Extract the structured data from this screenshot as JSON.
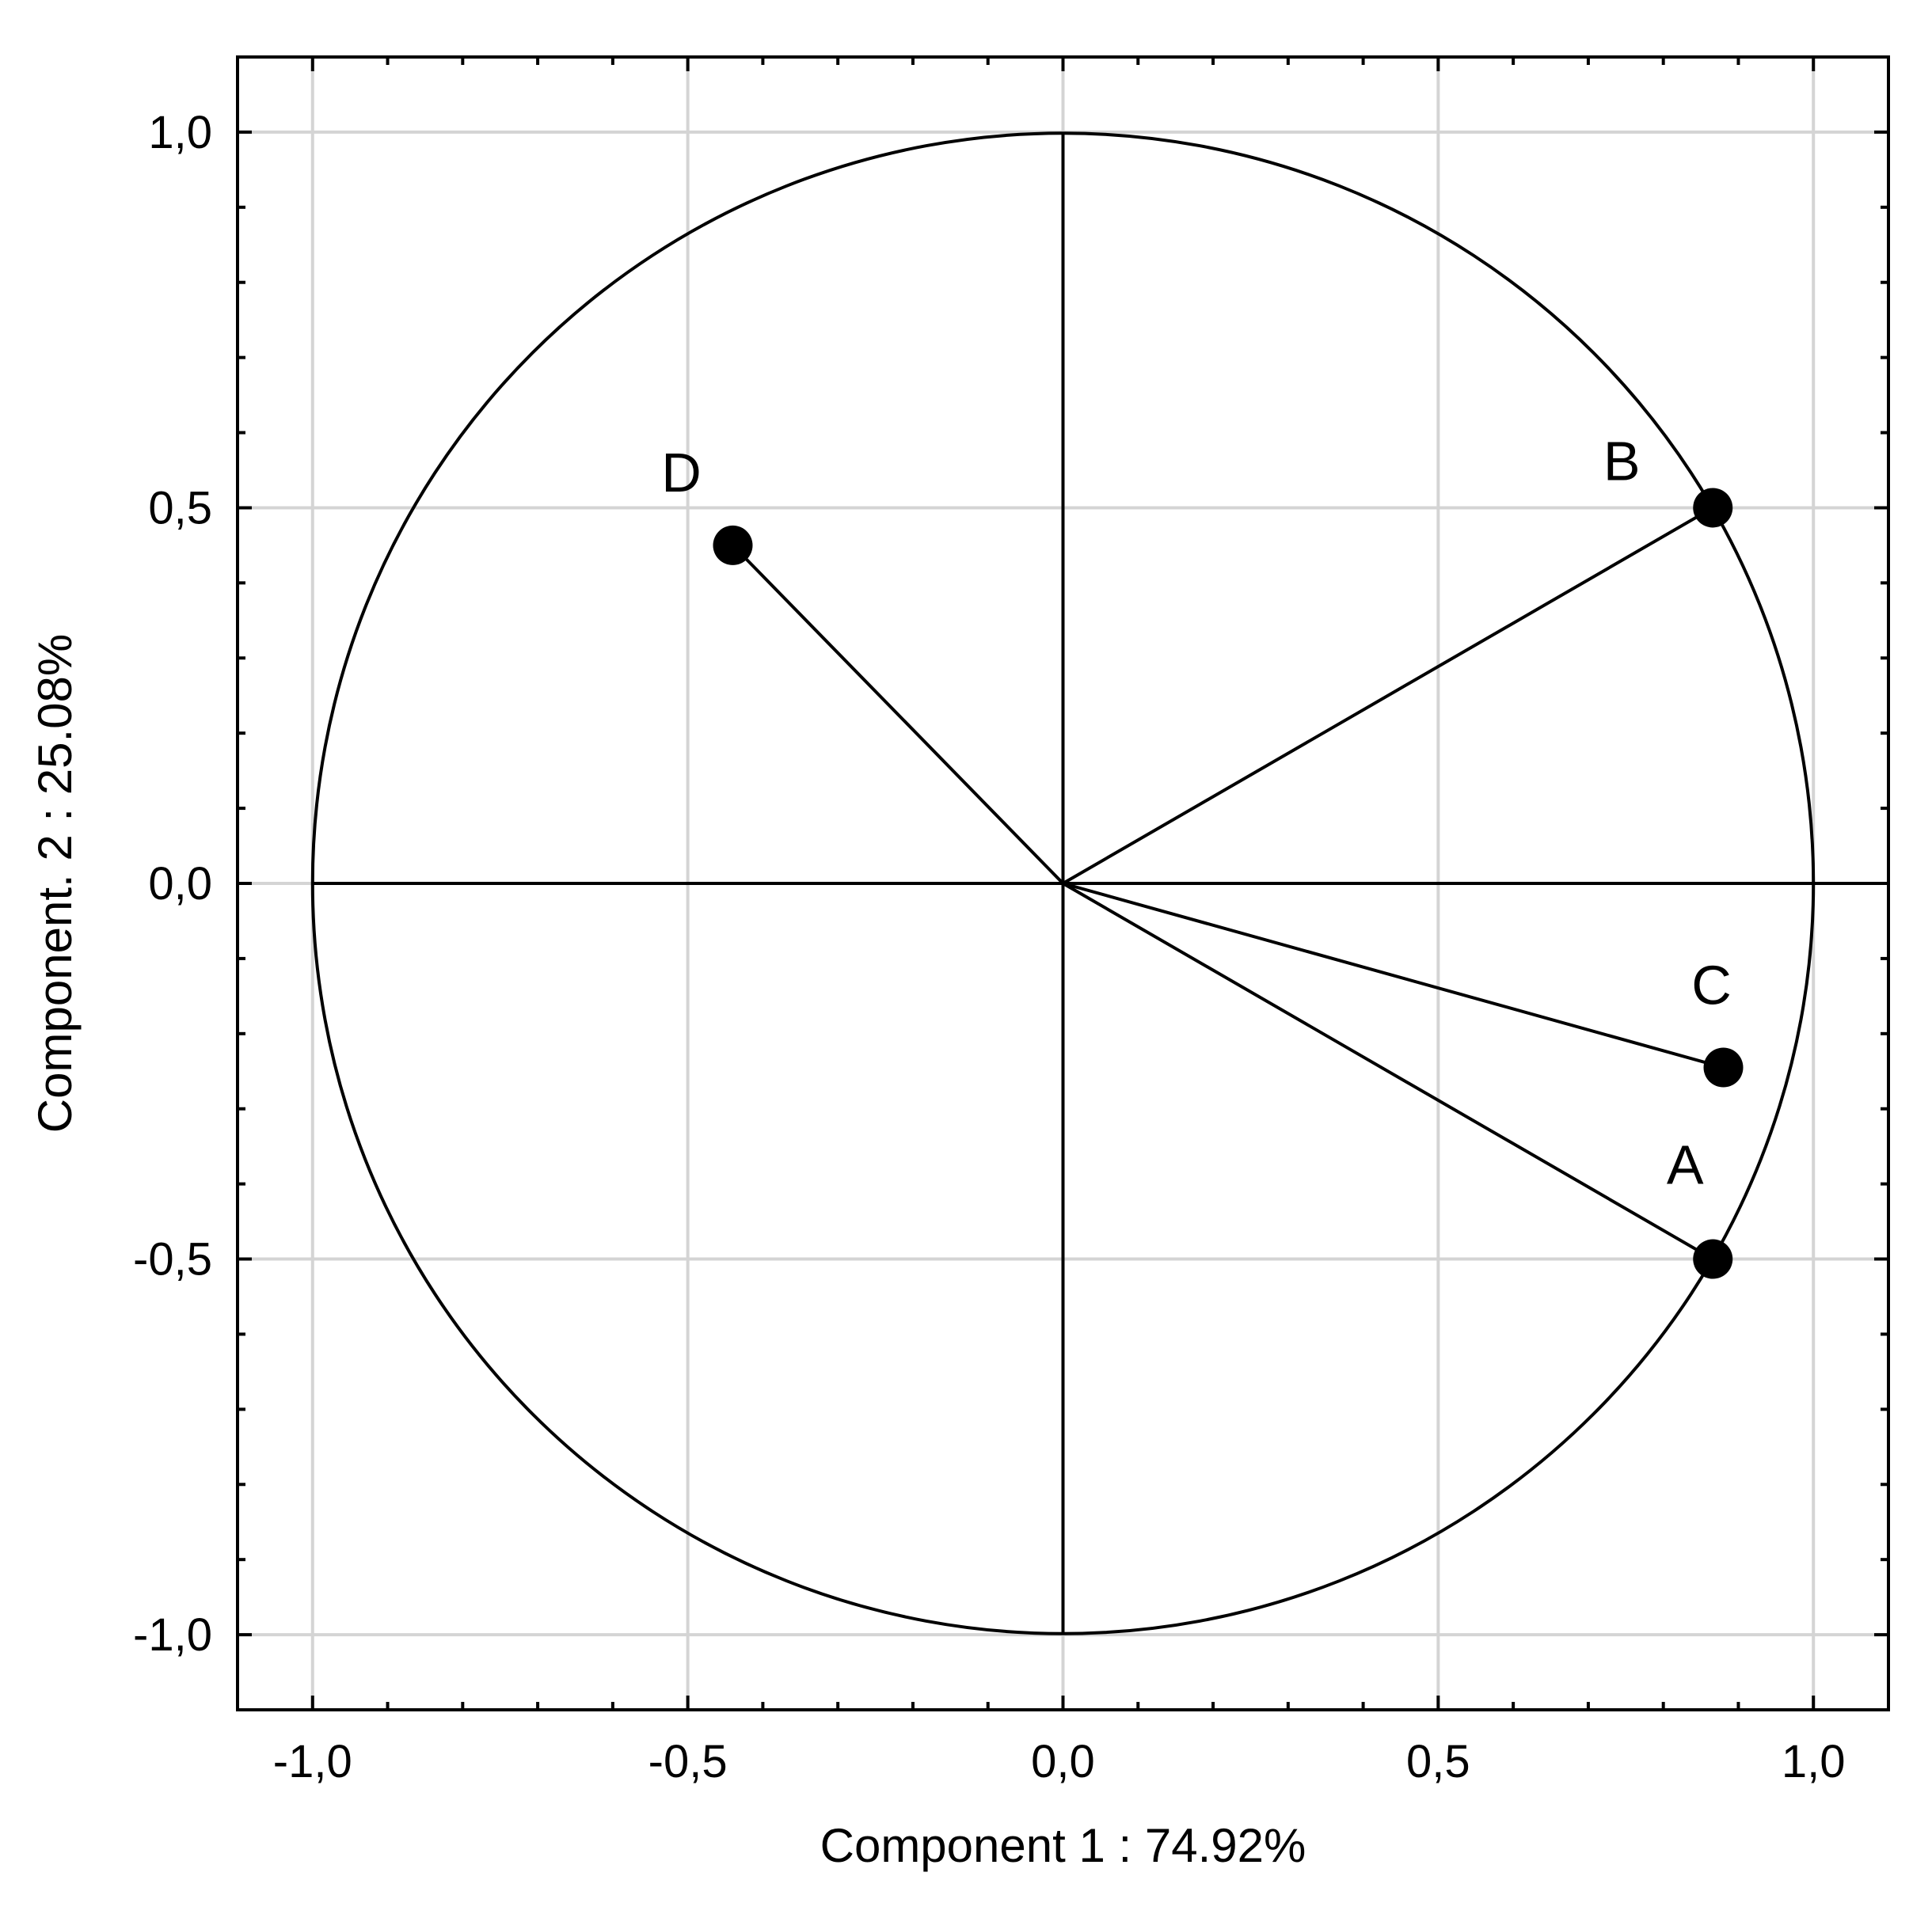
{
  "chart_data": {
    "type": "scatter",
    "subtype": "correlation-circle",
    "xlabel": "Component 1 : 74.92%",
    "ylabel": "Component. 2 : 25.08%",
    "xlim": [
      -1.1,
      1.1
    ],
    "ylim": [
      -1.1,
      1.1
    ],
    "x_ticks": [
      -1.0,
      -0.5,
      0.0,
      0.5,
      1.0
    ],
    "x_tick_labels": [
      "-1,0",
      "-0,5",
      "0,0",
      "0,5",
      "1,0"
    ],
    "y_ticks": [
      -1.0,
      -0.5,
      0.0,
      0.5,
      1.0
    ],
    "y_tick_labels": [
      "-1,0",
      "-0,5",
      "0,0",
      "0,5",
      "1,0"
    ],
    "grid": true,
    "unit_circle": true,
    "points": [
      {
        "label": "D",
        "x": -0.44,
        "y": 0.45
      },
      {
        "label": "B",
        "x": 0.866,
        "y": 0.5
      },
      {
        "label": "C",
        "x": 0.88,
        "y": -0.245
      },
      {
        "label": "A",
        "x": 0.866,
        "y": -0.5
      }
    ]
  }
}
